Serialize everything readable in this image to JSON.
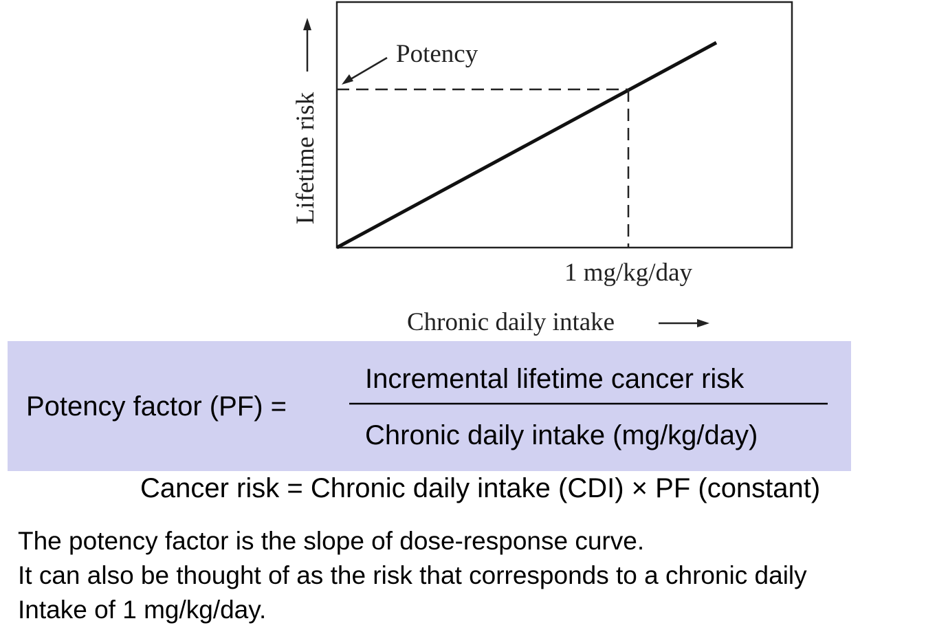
{
  "diagram": {
    "pointer_label": "Potency",
    "y_axis_label": "Lifetime risk",
    "x_marker_label": "1 mg/kg/day",
    "x_axis_label": "Chronic daily intake"
  },
  "formula": {
    "lhs": "Potency factor (PF) =",
    "numerator": "Incremental lifetime cancer risk",
    "denominator": "Chronic daily intake (mg/kg/day)"
  },
  "equation": "Cancer risk = Chronic daily intake (CDI) × PF (constant)",
  "paragraph": [
    "The potency factor is the slope of dose-response curve.",
    "It can also be thought of as the risk that corresponds to a chronic daily",
    "Intake of 1 mg/kg/day."
  ]
}
